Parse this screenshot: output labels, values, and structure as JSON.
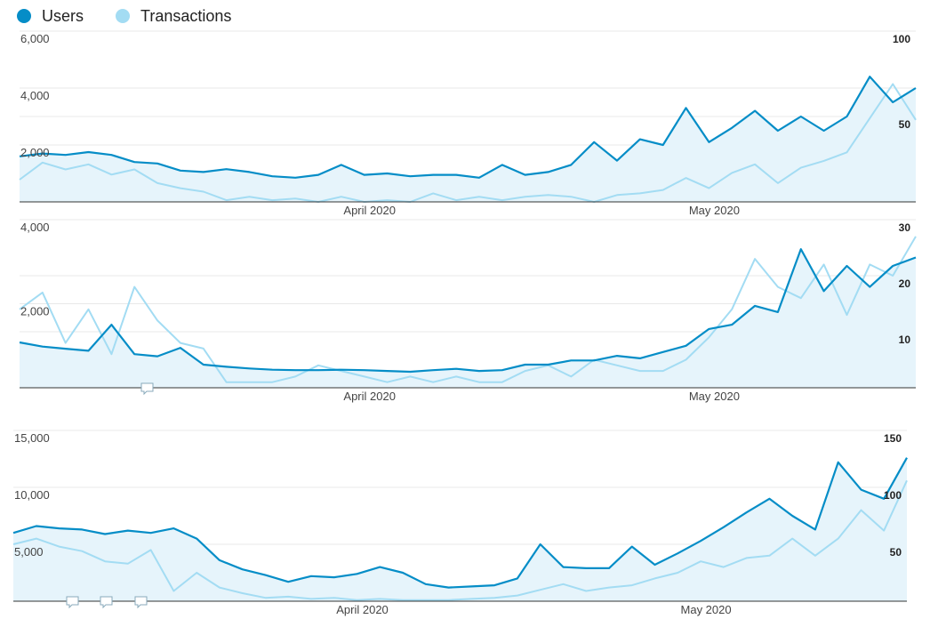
{
  "chart_data": [
    {
      "type": "line",
      "categories": [
        null,
        null,
        null,
        null,
        null,
        null,
        null,
        null,
        null,
        null,
        null,
        null,
        null,
        null,
        null,
        "April 2020",
        null,
        null,
        null,
        null,
        null,
        null,
        null,
        null,
        null,
        null,
        null,
        null,
        null,
        null,
        "May 2020",
        null,
        null,
        null,
        null,
        null,
        null,
        null,
        null,
        null
      ],
      "series": [
        {
          "name": "Users",
          "color": "#058dc7",
          "values": [
            1600,
            1700,
            1650,
            1750,
            1650,
            1400,
            1350,
            1100,
            1050,
            1150,
            1050,
            900,
            850,
            950,
            1300,
            950,
            1000,
            900,
            950,
            950,
            850,
            1300,
            950,
            1050,
            1300,
            2100,
            1450,
            2200,
            2000,
            3300,
            2100,
            2600,
            3200,
            2500,
            3000,
            2500,
            3000,
            4400,
            3500,
            4000
          ]
        },
        {
          "name": "Transactions",
          "color": "#a3dcf3",
          "axis": "y2",
          "values": [
            13,
            23,
            19,
            22,
            16,
            19,
            11,
            8,
            6,
            1,
            3,
            1,
            2,
            0,
            3,
            0,
            1,
            0,
            5,
            1,
            3,
            1,
            3,
            4,
            3,
            0,
            4,
            5,
            7,
            14,
            8,
            17,
            22,
            11,
            20,
            24,
            29,
            49,
            69,
            48
          ]
        }
      ],
      "ylim": [
        0,
        6000
      ],
      "yticks": [
        {
          "value": 2000,
          "label": "2,000"
        },
        {
          "value": 4000,
          "label": "4,000"
        },
        {
          "value": 6000,
          "label": "6,000"
        }
      ],
      "y2lim": [
        0,
        100
      ],
      "y2ticks": [
        50,
        100
      ],
      "grid": true
    },
    {
      "type": "line",
      "categories": [
        null,
        null,
        null,
        null,
        null,
        null,
        null,
        null,
        null,
        null,
        null,
        null,
        null,
        null,
        null,
        "April 2020",
        null,
        null,
        null,
        null,
        null,
        null,
        null,
        null,
        null,
        null,
        null,
        null,
        null,
        null,
        "May 2020",
        null,
        null,
        null,
        null,
        null,
        null,
        null,
        null,
        null
      ],
      "series": [
        {
          "name": "Users",
          "color": "#058dc7",
          "values": [
            1080,
            980,
            930,
            880,
            1500,
            800,
            750,
            950,
            550,
            500,
            460,
            430,
            420,
            420,
            430,
            420,
            400,
            380,
            420,
            450,
            400,
            420,
            550,
            550,
            650,
            650,
            760,
            700,
            850,
            1000,
            1400,
            1500,
            1950,
            1800,
            3300,
            2300,
            2900,
            2400,
            2900,
            3100
          ]
        },
        {
          "name": "Transactions",
          "color": "#a3dcf3",
          "axis": "y2",
          "values": [
            14,
            17,
            8,
            14,
            6,
            18,
            12,
            8,
            7,
            1,
            1,
            1,
            2,
            4,
            3,
            2,
            1,
            2,
            1,
            2,
            1,
            1,
            3,
            4,
            2,
            5,
            4,
            3,
            3,
            5,
            9,
            14,
            23,
            18,
            16,
            22,
            13,
            22,
            20,
            27
          ]
        }
      ],
      "ylim": [
        0,
        4000
      ],
      "yticks": [
        {
          "value": 2000,
          "label": "2,000"
        },
        {
          "value": 4000,
          "label": "4,000"
        }
      ],
      "y2lim": [
        0,
        30
      ],
      "y2ticks": [
        10,
        20,
        30
      ],
      "grid": true
    },
    {
      "type": "line",
      "categories": [
        null,
        null,
        null,
        null,
        null,
        null,
        null,
        null,
        null,
        null,
        null,
        null,
        null,
        null,
        null,
        "April 2020",
        null,
        null,
        null,
        null,
        null,
        null,
        null,
        null,
        null,
        null,
        null,
        null,
        null,
        null,
        "May 2020",
        null,
        null,
        null,
        null,
        null,
        null,
        null,
        null,
        null
      ],
      "series": [
        {
          "name": "Users",
          "color": "#058dc7",
          "values": [
            6000,
            6600,
            6400,
            6300,
            5900,
            6200,
            6000,
            6400,
            5500,
            3600,
            2800,
            2300,
            1700,
            2200,
            2100,
            2400,
            3000,
            2500,
            1500,
            1200,
            1300,
            1400,
            2000,
            5000,
            3000,
            2900,
            2900,
            4800,
            3200,
            4200,
            5300,
            6500,
            7800,
            9000,
            7500,
            6300,
            12200,
            9800,
            9000,
            12600
          ]
        },
        {
          "name": "Transactions",
          "color": "#a3dcf3",
          "axis": "y2",
          "values": [
            50,
            55,
            48,
            44,
            35,
            33,
            45,
            9,
            25,
            12,
            7,
            3,
            4,
            2,
            3,
            1,
            2,
            1,
            1,
            1,
            2,
            3,
            5,
            10,
            15,
            9,
            12,
            14,
            20,
            25,
            35,
            30,
            38,
            40,
            55,
            40,
            55,
            80,
            62,
            106
          ]
        }
      ],
      "ylim": [
        0,
        15000
      ],
      "yticks": [
        {
          "value": 5000,
          "label": "5,000"
        },
        {
          "value": 10000,
          "label": "10,000"
        },
        {
          "value": 15000,
          "label": "15,000"
        }
      ],
      "y2lim": [
        0,
        150
      ],
      "y2ticks": [
        50,
        100,
        150
      ],
      "grid": true
    }
  ]
}
